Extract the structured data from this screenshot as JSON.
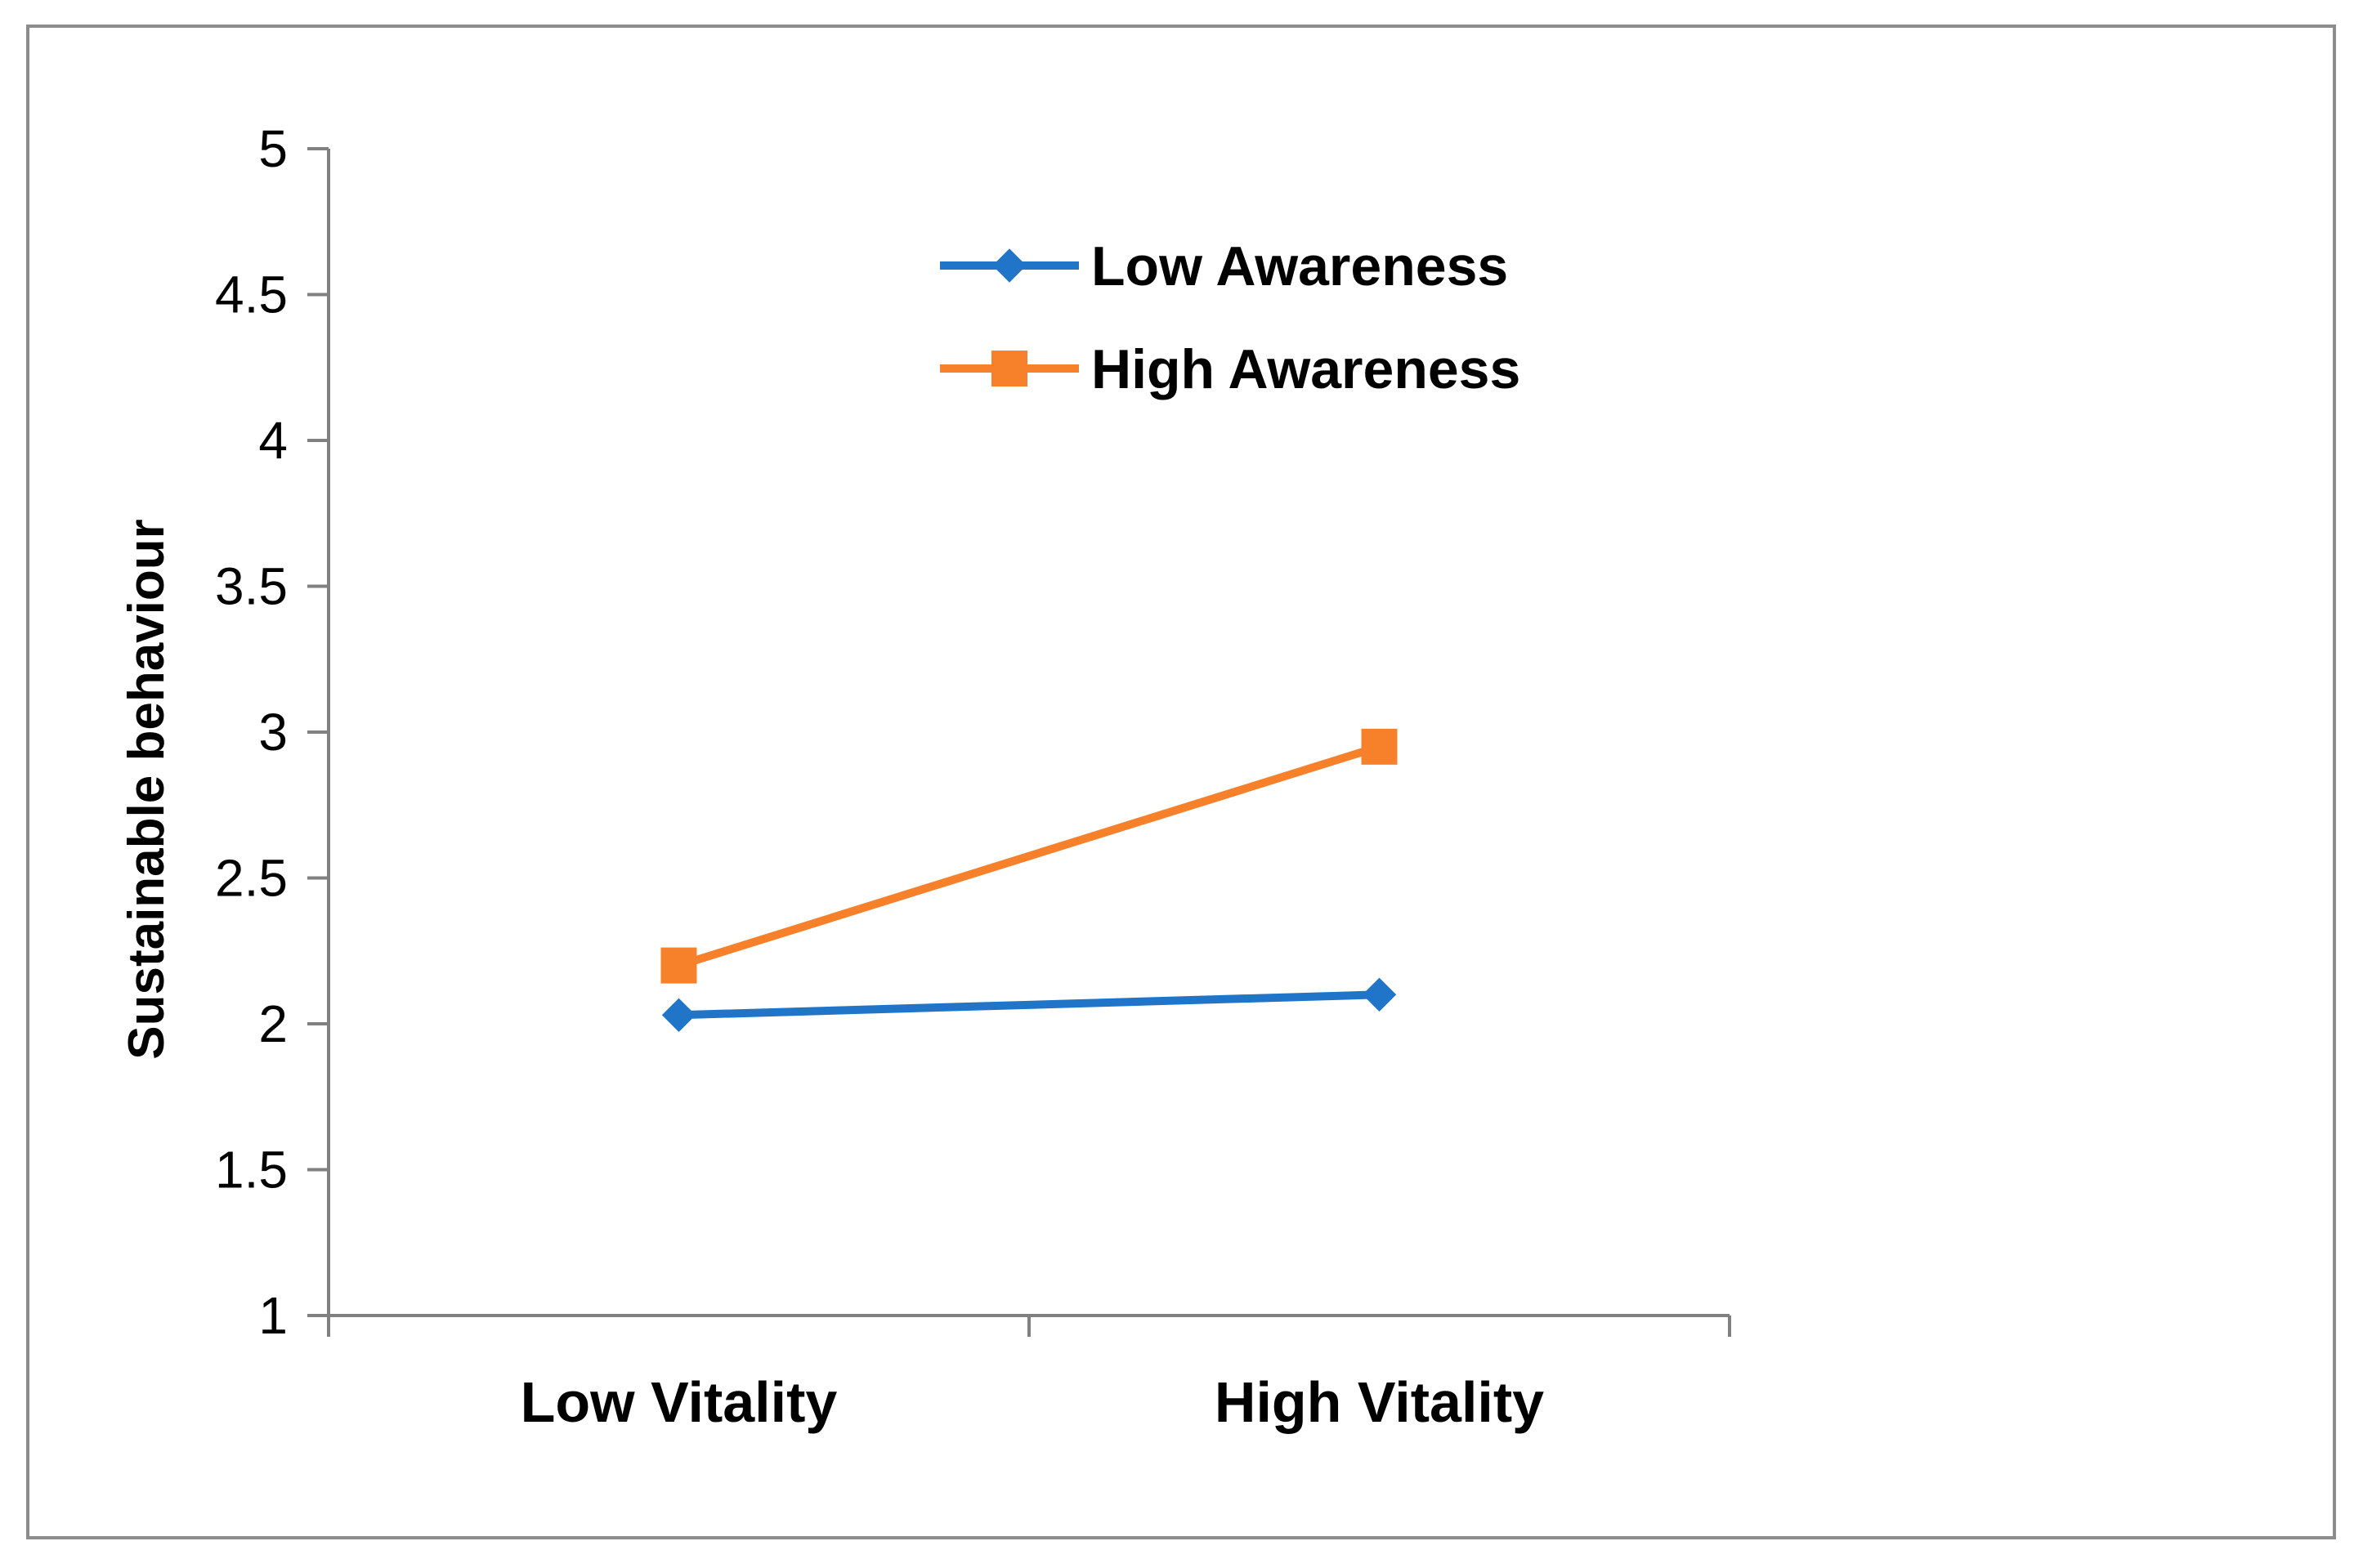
{
  "chart_data": {
    "type": "line",
    "title": "",
    "xlabel": "",
    "ylabel": "Sustainable behaviour",
    "categories": [
      "Low Vitality",
      "High Vitality"
    ],
    "ylim": [
      1,
      5
    ],
    "yticks": [
      1,
      1.5,
      2,
      2.5,
      3,
      3.5,
      4,
      4.5,
      5
    ],
    "grid": false,
    "legend_position": "top-center",
    "series": [
      {
        "name": "Low Awareness",
        "values": [
          2.03,
          2.1
        ],
        "color": "#2175c8",
        "marker": "diamond"
      },
      {
        "name": "High Awareness",
        "values": [
          2.2,
          2.95
        ],
        "color": "#f7802a",
        "marker": "square"
      }
    ]
  }
}
